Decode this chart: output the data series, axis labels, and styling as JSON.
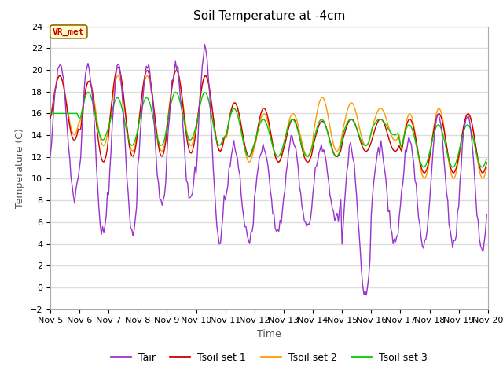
{
  "title": "Soil Temperature at -4cm",
  "xlabel": "Time",
  "ylabel": "Temperature (C)",
  "ylim": [
    -2,
    24
  ],
  "yticks": [
    -2,
    0,
    2,
    4,
    6,
    8,
    10,
    12,
    14,
    16,
    18,
    20,
    22,
    24
  ],
  "xlim": [
    0,
    360
  ],
  "xtick_labels": [
    "Nov 5",
    "Nov 6",
    "Nov 7",
    "Nov 8",
    "Nov 9",
    "Nov 10",
    "Nov 11",
    "Nov 12",
    "Nov 13",
    "Nov 14",
    "Nov 15",
    "Nov 16",
    "Nov 17",
    "Nov 18",
    "Nov 19",
    "Nov 20"
  ],
  "xtick_positions": [
    0,
    24,
    48,
    72,
    96,
    120,
    144,
    168,
    192,
    216,
    240,
    264,
    288,
    312,
    336,
    360
  ],
  "annotation_text": "VR_met",
  "colors": {
    "Tair": "#9933cc",
    "Tsoil1": "#cc0000",
    "Tsoil2": "#ff9900",
    "Tsoil3": "#00cc00"
  },
  "legend_labels": [
    "Tair",
    "Tsoil set 1",
    "Tsoil set 2",
    "Tsoil set 3"
  ],
  "fig_bg_color": "#ffffff",
  "plot_bg_color": "#ffffff",
  "grid_color": "#dddddd",
  "title_fontsize": 11,
  "axis_label_fontsize": 9,
  "tick_fontsize": 8,
  "tair_peaks": [
    20.5,
    20.5,
    20.5,
    20.5,
    20.5,
    21.8,
    13.0,
    13.0,
    13.5,
    13.0,
    13.0,
    13.0,
    13.5,
    16.0,
    16.0
  ],
  "tair_troughs": [
    8.5,
    5.0,
    5.0,
    7.5,
    8.0,
    4.3,
    4.3,
    5.3,
    5.5,
    6.3,
    -0.5,
    4.0,
    4.0,
    4.0,
    3.7
  ],
  "tair_peak_h": [
    0.58,
    0.55,
    0.58,
    0.58,
    0.55,
    0.55,
    0.55,
    0.55,
    0.55,
    0.55,
    0.55,
    0.55,
    0.55,
    0.55,
    0.55
  ],
  "tsoil1_peaks": [
    19.5,
    19.0,
    20.3,
    20.0,
    20.0,
    19.5,
    17.0,
    16.5,
    15.5,
    15.3,
    15.5,
    15.5,
    15.5,
    16.0,
    16.0
  ],
  "tsoil1_troughs": [
    13.5,
    11.5,
    12.0,
    12.0,
    12.3,
    12.5,
    12.0,
    11.5,
    11.5,
    12.0,
    12.5,
    12.5,
    10.5,
    10.5,
    10.5
  ],
  "tsoil2_peaks": [
    19.5,
    19.0,
    19.5,
    19.5,
    20.0,
    19.5,
    17.0,
    16.0,
    16.0,
    17.5,
    17.0,
    16.5,
    16.0,
    16.5,
    16.0
  ],
  "tsoil2_troughs": [
    14.0,
    13.0,
    12.5,
    12.5,
    13.0,
    12.5,
    11.5,
    11.5,
    12.0,
    12.5,
    13.0,
    13.5,
    10.0,
    10.0,
    10.0
  ],
  "tsoil3_peaks": [
    16.0,
    18.0,
    17.5,
    17.5,
    18.0,
    18.0,
    16.5,
    15.5,
    15.5,
    15.5,
    15.5,
    15.5,
    15.0,
    15.0,
    15.0
  ],
  "tsoil3_troughs": [
    16.0,
    13.5,
    13.0,
    13.0,
    13.5,
    13.0,
    12.0,
    12.0,
    12.0,
    12.0,
    13.0,
    14.0,
    11.0,
    11.0,
    11.0
  ]
}
